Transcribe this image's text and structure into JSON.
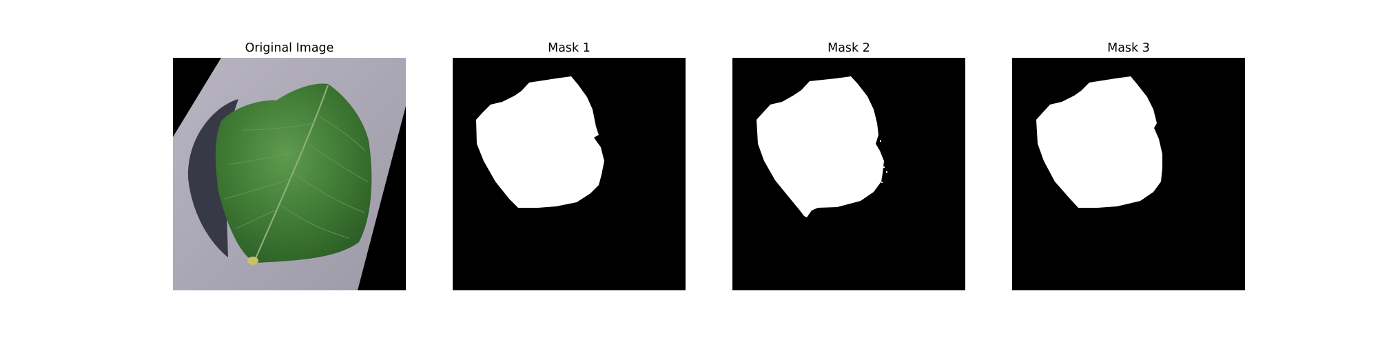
{
  "figure": {
    "panels": [
      {
        "title": "Original Image",
        "kind": "photo"
      },
      {
        "title": "Mask 1",
        "kind": "mask"
      },
      {
        "title": "Mask 2",
        "kind": "mask"
      },
      {
        "title": "Mask 3",
        "kind": "mask"
      }
    ]
  },
  "colors": {
    "background": "#ffffff",
    "mask_background": "#000000",
    "mask_foreground": "#ffffff",
    "rotated_region": "#a9a6b3",
    "leaf": "#3f7a34",
    "leaf_shadow": "#2a2c3a"
  }
}
